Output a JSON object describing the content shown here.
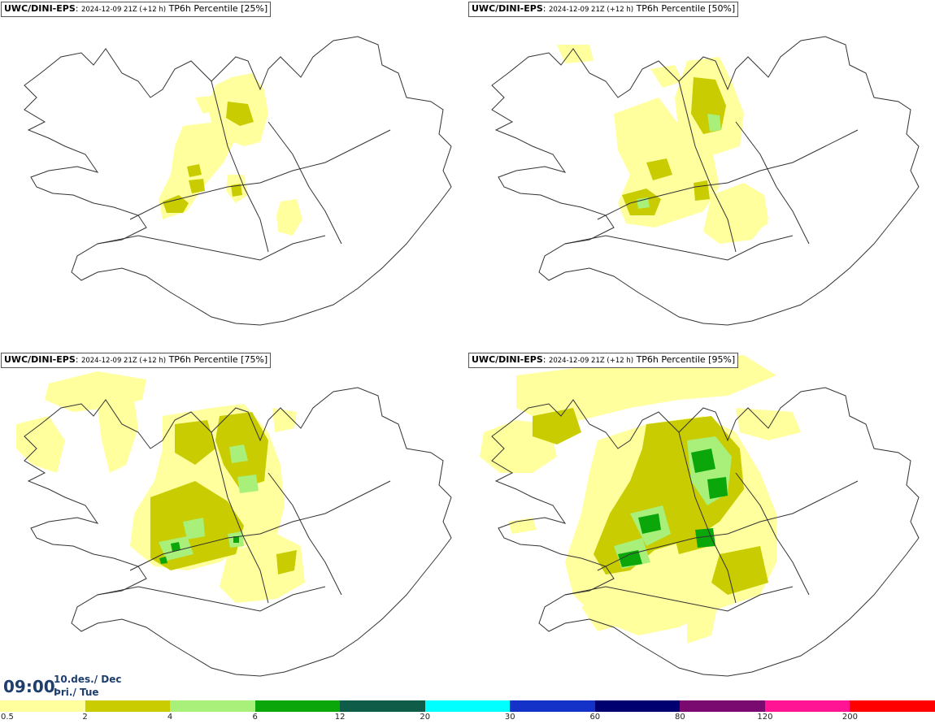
{
  "colors": {
    "c0": "#ffff9e",
    "c1": "#c8cc00",
    "c2": "#a8f07a",
    "c3": "#0aa60a",
    "c4": "#0f5c48",
    "c5": "#00ffff",
    "c6": "#1432c8",
    "c7": "#000070",
    "c8": "#7a0a70",
    "c9": "#ff1493",
    "c10": "#ff0000",
    "outline": "#333333"
  },
  "panels": [
    {
      "model": "UWC/DINI-EPS",
      "run": "2024-12-09 21Z (+12 h)",
      "label": "TP6h Percentile [25%]"
    },
    {
      "model": "UWC/DINI-EPS",
      "run": "2024-12-09 21Z (+12 h)",
      "label": "TP6h Percentile [50%]"
    },
    {
      "model": "UWC/DINI-EPS",
      "run": "2024-12-09 21Z (+12 h)",
      "label": "TP6h Percentile [75%]"
    },
    {
      "model": "UWC/DINI-EPS",
      "run": "2024-12-09 21Z (+12 h)",
      "label": "TP6h Percentile [95%]"
    }
  ],
  "time": {
    "clock": "09:00",
    "date_line": "10.des./ Dec",
    "day_line": "Þri./ Tue"
  },
  "legend": {
    "ticks": [
      "0.5",
      "2",
      "4",
      "6",
      "12",
      "20",
      "30",
      "60",
      "80",
      "120",
      "200"
    ],
    "colors": [
      "#ffff9e",
      "#c8cc00",
      "#a8f07a",
      "#0aa60a",
      "#0f5c48",
      "#00ffff",
      "#1432c8",
      "#000070",
      "#7a0a70",
      "#ff1493",
      "#ff0000"
    ]
  }
}
